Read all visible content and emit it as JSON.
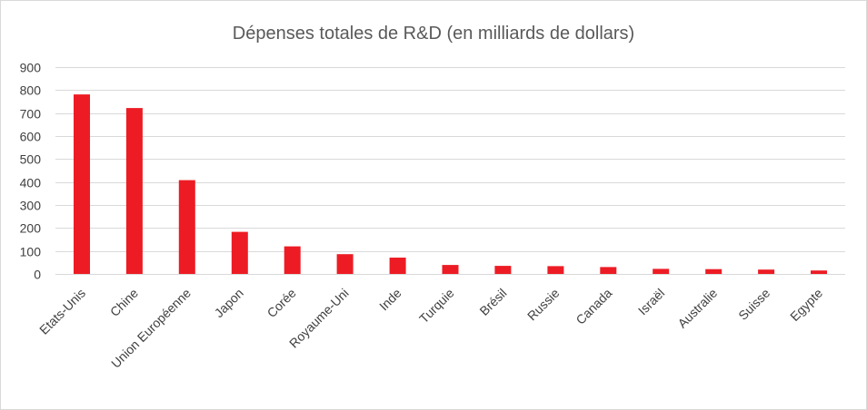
{
  "chart_data": {
    "type": "bar",
    "title": "Dépenses totales de R&D (en milliards de dollars)",
    "xlabel": "",
    "ylabel": "",
    "ylim": [
      0,
      900
    ],
    "yticks": [
      0,
      100,
      200,
      300,
      400,
      500,
      600,
      700,
      800,
      900
    ],
    "grid": true,
    "legend": "none",
    "bar_color": "#ed1c24",
    "grid_color": "#d9d9d9",
    "categories": [
      "Etats-Unis",
      "Chine",
      "Union Européenne",
      "Japon",
      "Corée",
      "Royaume-Uni",
      "Inde",
      "Turquie",
      "Brésil",
      "Russie",
      "Canada",
      "Israël",
      "Australie",
      "Suisse",
      "Egypte"
    ],
    "values": [
      781,
      722,
      408,
      183,
      120,
      86,
      71,
      39,
      35,
      34,
      30,
      22,
      21,
      19,
      15
    ]
  }
}
